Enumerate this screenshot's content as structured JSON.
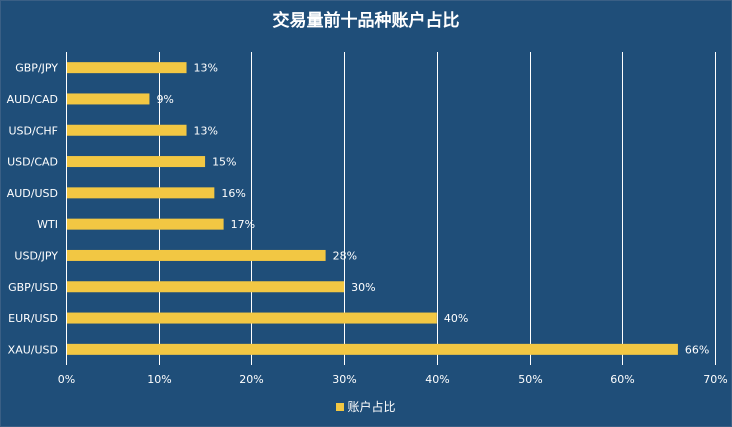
{
  "chart_data": {
    "type": "bar",
    "orientation": "horizontal",
    "title": "交易量前十品种账户占比",
    "categories": [
      "XAU/USD",
      "EUR/USD",
      "GBP/USD",
      "USD/JPY",
      "WTI",
      "AUD/USD",
      "USD/CAD",
      "USD/CHF",
      "AUD/CAD",
      "GBP/JPY"
    ],
    "series": [
      {
        "name": "账户占比",
        "values": [
          66,
          40,
          30,
          28,
          17,
          16,
          15,
          13,
          9,
          13
        ],
        "data_labels": [
          "66%",
          "40%",
          "30%",
          "28%",
          "17%",
          "16%",
          "15%",
          "13%",
          "9%",
          "13%"
        ]
      }
    ],
    "xlim": [
      0,
      70
    ],
    "xticks": [
      "0%",
      "10%",
      "20%",
      "30%",
      "40%",
      "50%",
      "60%",
      "70%"
    ],
    "grid": true,
    "legend_position": "bottom",
    "colors": {
      "background": "#1f4e79",
      "bar": "#f2c743",
      "gridline": "#ffffff",
      "text": "#ffffff"
    }
  }
}
